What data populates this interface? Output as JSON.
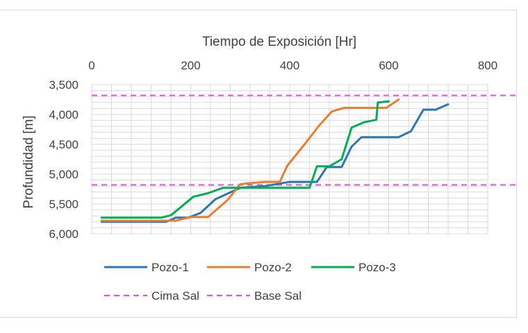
{
  "chart_data": {
    "type": "line",
    "xlabel": "Tiempo de Exposición [Hr]",
    "ylabel": "Profundidad [m]",
    "xlim": [
      0,
      800
    ],
    "ylim": [
      3500,
      6000
    ],
    "y_reversed": true,
    "x_axis_position": "top",
    "x_ticks": [
      "0",
      "200",
      "400",
      "600",
      "800"
    ],
    "y_ticks": [
      "3,500",
      "4,000",
      "4,500",
      "5,000",
      "5,500",
      "6,000"
    ],
    "grid": true,
    "legend_position": "bottom",
    "series": [
      {
        "name": "Pozo-1",
        "color": "#2e75b6",
        "style": "solid",
        "x": [
          20,
          150,
          170,
          195,
          220,
          250,
          300,
          350,
          400,
          430,
          455,
          475,
          505,
          525,
          545,
          575,
          620,
          645,
          670,
          695,
          720
        ],
        "y": [
          5800,
          5800,
          5730,
          5730,
          5650,
          5420,
          5230,
          5200,
          5130,
          5130,
          5130,
          4880,
          4880,
          4540,
          4380,
          4380,
          4380,
          4280,
          3920,
          3920,
          3830
        ]
      },
      {
        "name": "Pozo-2",
        "color": "#ed7d31",
        "style": "solid",
        "x": [
          20,
          170,
          200,
          235,
          275,
          300,
          320,
          350,
          380,
          395,
          430,
          460,
          485,
          510,
          540,
          595,
          620
        ],
        "y": [
          5780,
          5780,
          5720,
          5720,
          5430,
          5170,
          5150,
          5130,
          5130,
          4860,
          4500,
          4180,
          3950,
          3890,
          3890,
          3890,
          3750
        ]
      },
      {
        "name": "Pozo-3",
        "color": "#00b050",
        "style": "solid",
        "x": [
          20,
          140,
          160,
          185,
          205,
          235,
          265,
          300,
          330,
          365,
          400,
          440,
          455,
          480,
          505,
          525,
          550,
          575,
          578,
          600
        ],
        "y": [
          5730,
          5730,
          5690,
          5520,
          5380,
          5320,
          5230,
          5230,
          5230,
          5230,
          5230,
          5230,
          4870,
          4870,
          4750,
          4220,
          4130,
          4090,
          3800,
          3780
        ]
      }
    ],
    "reference_lines": [
      {
        "name": "Cima Sal",
        "color": "#e64ce6",
        "style": "dashed",
        "y": 3680
      },
      {
        "name": "Base Sal",
        "color": "#e64ce6",
        "style": "dashed",
        "y": 5180
      }
    ]
  }
}
